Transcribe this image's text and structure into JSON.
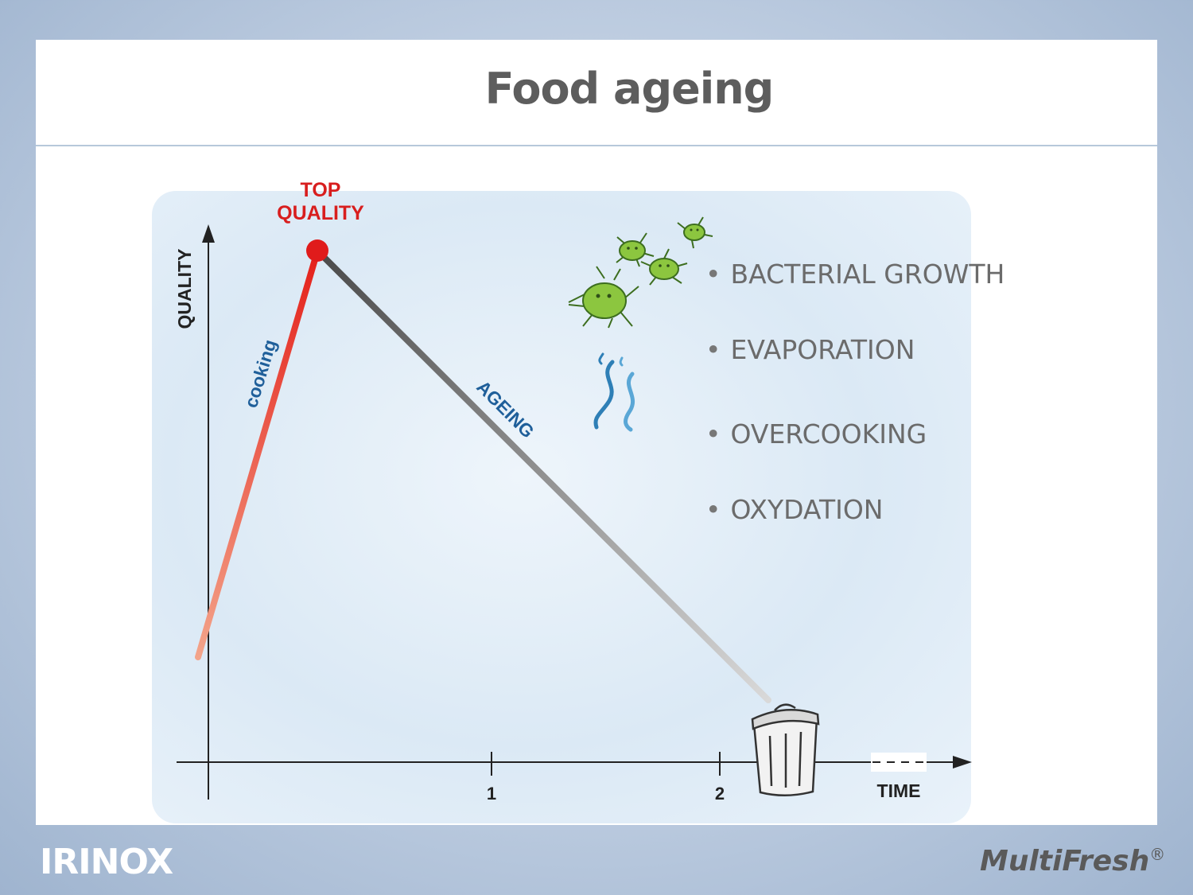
{
  "slide": {
    "title": "Food ageing"
  },
  "diagram": {
    "y_axis_label": "QUALITY",
    "x_axis_label": "TIME",
    "x_ticks": [
      "1",
      "2"
    ],
    "peak_label_line1": "TOP",
    "peak_label_line2": "QUALITY",
    "rising_segment_label": "cooking",
    "falling_segment_label": "AGEING",
    "colors": {
      "cooking": "#e8322a",
      "peak": "#e01b1b",
      "ageing": "#555555",
      "segment_labels": "#1f5f9a",
      "bacteria": "#8cc63f"
    },
    "icons": [
      "bacteria-icon",
      "evaporation-icon",
      "trash-can-icon"
    ]
  },
  "causes": [
    "BACTERIAL GROWTH",
    "EVAPORATION",
    "OVERCOOKING",
    "OXYDATION"
  ],
  "footer": {
    "left_logo": "IRINOX",
    "right_logo": "MultiFresh",
    "right_logo_mark": "®"
  }
}
